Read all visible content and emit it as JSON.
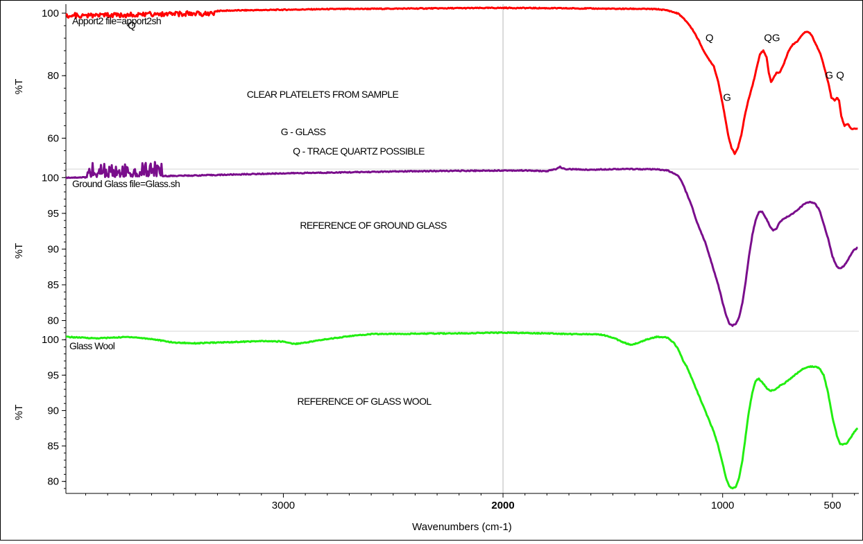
{
  "chart_data": {
    "type": "line",
    "xlabel": "Wavenumbers (cm-1)",
    "x_reversed": true,
    "xlim": [
      3990,
      380
    ],
    "x_ticks": [
      3000,
      2000,
      1000,
      500
    ],
    "x_tick_labels": [
      "3000",
      "2000",
      "1000",
      "500"
    ],
    "x_tick_label_bold": "2000",
    "vertical_guide_at": 2000,
    "grid": false,
    "panels": [
      {
        "id": "apport",
        "ylabel": "%T",
        "ylim": [
          51,
          102
        ],
        "y_ticks": [
          60,
          80,
          100
        ],
        "y_tick_labels": [
          "60",
          "80",
          "100"
        ],
        "color": "#ff0000",
        "series_label": "Apport2 file=apport2sh",
        "noise_low_region": [
          3990,
          3300
        ],
        "points": [
          [
            3990,
            100
          ],
          [
            3800,
            100.2
          ],
          [
            3600,
            100.4
          ],
          [
            3400,
            100.6
          ],
          [
            3200,
            100.9
          ],
          [
            3000,
            101.1
          ],
          [
            2800,
            101.3
          ],
          [
            2600,
            101.4
          ],
          [
            2400,
            101.5
          ],
          [
            2200,
            101.6
          ],
          [
            2000,
            101.7
          ],
          [
            1800,
            101.6
          ],
          [
            1600,
            101.5
          ],
          [
            1500,
            101.4
          ],
          [
            1400,
            101.4
          ],
          [
            1300,
            101.3
          ],
          [
            1250,
            100.9
          ],
          [
            1200,
            99.8
          ],
          [
            1160,
            97
          ],
          [
            1130,
            94
          ],
          [
            1100,
            90
          ],
          [
            1080,
            87
          ],
          [
            1060,
            85
          ],
          [
            1040,
            83
          ],
          [
            1020,
            78
          ],
          [
            1000,
            71
          ],
          [
            990,
            67
          ],
          [
            975,
            61
          ],
          [
            960,
            57
          ],
          [
            945,
            55
          ],
          [
            930,
            57
          ],
          [
            915,
            61
          ],
          [
            900,
            67
          ],
          [
            880,
            73
          ],
          [
            860,
            78
          ],
          [
            840,
            84
          ],
          [
            830,
            87
          ],
          [
            815,
            88
          ],
          [
            800,
            86
          ],
          [
            790,
            81
          ],
          [
            780,
            78
          ],
          [
            770,
            79
          ],
          [
            755,
            81
          ],
          [
            740,
            81
          ],
          [
            720,
            84
          ],
          [
            700,
            88
          ],
          [
            680,
            90
          ],
          [
            660,
            91
          ],
          [
            640,
            93
          ],
          [
            625,
            94
          ],
          [
            610,
            94
          ],
          [
            595,
            93
          ],
          [
            575,
            90
          ],
          [
            555,
            87
          ],
          [
            535,
            82
          ],
          [
            520,
            78
          ],
          [
            505,
            73
          ],
          [
            490,
            72
          ],
          [
            480,
            73
          ],
          [
            470,
            72
          ],
          [
            460,
            67
          ],
          [
            445,
            64
          ],
          [
            430,
            64.5
          ],
          [
            415,
            63
          ],
          [
            400,
            63
          ],
          [
            385,
            63
          ]
        ],
        "annotations": [
          "CLEAR PLATELETS FROM SAMPLE",
          "G - GLASS",
          "Q - TRACE QUARTZ POSSIBLE"
        ],
        "peak_labels": [
          {
            "text": "Q",
            "x": 3690,
            "y": 95
          },
          {
            "text": "Q",
            "x": 1060,
            "y": 91
          },
          {
            "text": "G",
            "x": 980,
            "y": 72
          },
          {
            "text": "QG",
            "x": 775,
            "y": 91
          },
          {
            "text": "G Q",
            "x": 490,
            "y": 79
          }
        ]
      },
      {
        "id": "ground_glass",
        "ylabel": "%T",
        "ylim": [
          78.5,
          101
        ],
        "y_ticks": [
          80,
          85,
          90,
          95,
          100
        ],
        "y_tick_labels": [
          "80",
          "85",
          "90",
          "95",
          "100"
        ],
        "color": "#7a0e8c",
        "series_label": "Ground Glass file=Glass.sh",
        "noise_high_region": [
          3900,
          3550
        ],
        "points": [
          [
            3990,
            100
          ],
          [
            3800,
            100.1
          ],
          [
            3600,
            100.2
          ],
          [
            3400,
            100.3
          ],
          [
            3200,
            100.45
          ],
          [
            3000,
            100.6
          ],
          [
            2800,
            100.7
          ],
          [
            2600,
            100.8
          ],
          [
            2400,
            100.9
          ],
          [
            2200,
            100.95
          ],
          [
            2000,
            101
          ],
          [
            1900,
            101
          ],
          [
            1800,
            100.9
          ],
          [
            1760,
            101.2
          ],
          [
            1740,
            101.5
          ],
          [
            1720,
            101.2
          ],
          [
            1600,
            101.1
          ],
          [
            1500,
            101.2
          ],
          [
            1400,
            101.2
          ],
          [
            1300,
            101.15
          ],
          [
            1250,
            101
          ],
          [
            1200,
            100.2
          ],
          [
            1180,
            99
          ],
          [
            1160,
            97.5
          ],
          [
            1140,
            96
          ],
          [
            1120,
            94
          ],
          [
            1100,
            92.5
          ],
          [
            1080,
            91
          ],
          [
            1060,
            89
          ],
          [
            1040,
            87
          ],
          [
            1020,
            85
          ],
          [
            1000,
            82.5
          ],
          [
            985,
            80.8
          ],
          [
            970,
            79.6
          ],
          [
            955,
            79.3
          ],
          [
            940,
            79.5
          ],
          [
            925,
            80.5
          ],
          [
            910,
            82.5
          ],
          [
            895,
            85.5
          ],
          [
            880,
            89
          ],
          [
            865,
            92
          ],
          [
            850,
            94
          ],
          [
            835,
            95.2
          ],
          [
            820,
            95.2
          ],
          [
            800,
            94.2
          ],
          [
            785,
            93.2
          ],
          [
            770,
            92.6
          ],
          [
            755,
            92.9
          ],
          [
            740,
            93.8
          ],
          [
            720,
            94.3
          ],
          [
            700,
            94.6
          ],
          [
            680,
            95
          ],
          [
            660,
            95.4
          ],
          [
            640,
            96
          ],
          [
            620,
            96.5
          ],
          [
            600,
            96.6
          ],
          [
            580,
            96.4
          ],
          [
            560,
            95.5
          ],
          [
            540,
            93.5
          ],
          [
            520,
            91.5
          ],
          [
            500,
            89
          ],
          [
            480,
            87.5
          ],
          [
            465,
            87.3
          ],
          [
            450,
            87.6
          ],
          [
            435,
            88.2
          ],
          [
            420,
            89
          ],
          [
            405,
            89.8
          ],
          [
            385,
            90.2
          ]
        ],
        "annotations": [
          "REFERENCE OF GROUND GLASS"
        ]
      },
      {
        "id": "glass_wool",
        "ylabel": "%T",
        "ylim": [
          78.5,
          101
        ],
        "y_ticks": [
          80,
          85,
          90,
          95,
          100
        ],
        "y_tick_labels": [
          "80",
          "85",
          "90",
          "95",
          "100"
        ],
        "color": "#22ee11",
        "series_label": "Glass Wool",
        "points": [
          [
            3990,
            100.4
          ],
          [
            3850,
            100.2
          ],
          [
            3700,
            100.4
          ],
          [
            3600,
            100.1
          ],
          [
            3500,
            99.6
          ],
          [
            3400,
            99.5
          ],
          [
            3300,
            99.6
          ],
          [
            3200,
            99.7
          ],
          [
            3100,
            99.8
          ],
          [
            3000,
            99.75
          ],
          [
            2950,
            99.4
          ],
          [
            2900,
            99.6
          ],
          [
            2800,
            100.1
          ],
          [
            2700,
            100.5
          ],
          [
            2600,
            100.8
          ],
          [
            2400,
            100.85
          ],
          [
            2200,
            100.9
          ],
          [
            2000,
            101
          ],
          [
            1800,
            100.9
          ],
          [
            1700,
            100.8
          ],
          [
            1600,
            100.8
          ],
          [
            1550,
            100.7
          ],
          [
            1500,
            100.3
          ],
          [
            1450,
            99.6
          ],
          [
            1420,
            99.3
          ],
          [
            1400,
            99.4
          ],
          [
            1350,
            100
          ],
          [
            1300,
            100.4
          ],
          [
            1250,
            100.3
          ],
          [
            1220,
            99.5
          ],
          [
            1200,
            98.5
          ],
          [
            1180,
            97
          ],
          [
            1160,
            96
          ],
          [
            1140,
            94.5
          ],
          [
            1120,
            93
          ],
          [
            1100,
            91.5
          ],
          [
            1080,
            90
          ],
          [
            1060,
            88.5
          ],
          [
            1040,
            87
          ],
          [
            1020,
            85
          ],
          [
            1000,
            82.5
          ],
          [
            985,
            80.5
          ],
          [
            970,
            79.3
          ],
          [
            955,
            79
          ],
          [
            940,
            79.2
          ],
          [
            925,
            80.5
          ],
          [
            910,
            83
          ],
          [
            895,
            86.5
          ],
          [
            880,
            90
          ],
          [
            865,
            92.5
          ],
          [
            850,
            94.2
          ],
          [
            835,
            94.5
          ],
          [
            815,
            93.8
          ],
          [
            795,
            93
          ],
          [
            780,
            92.8
          ],
          [
            760,
            93
          ],
          [
            740,
            93.5
          ],
          [
            720,
            93.8
          ],
          [
            700,
            94.3
          ],
          [
            680,
            94.8
          ],
          [
            660,
            95.3
          ],
          [
            640,
            95.8
          ],
          [
            620,
            96.1
          ],
          [
            600,
            96.2
          ],
          [
            580,
            96.2
          ],
          [
            560,
            96
          ],
          [
            540,
            95
          ],
          [
            520,
            92.5
          ],
          [
            500,
            89
          ],
          [
            480,
            86.5
          ],
          [
            465,
            85.3
          ],
          [
            450,
            85.2
          ],
          [
            435,
            85.4
          ],
          [
            420,
            86
          ],
          [
            405,
            86.8
          ],
          [
            385,
            87.5
          ]
        ],
        "annotations": [
          "REFERENCE OF GLASS WOOL"
        ]
      }
    ]
  }
}
